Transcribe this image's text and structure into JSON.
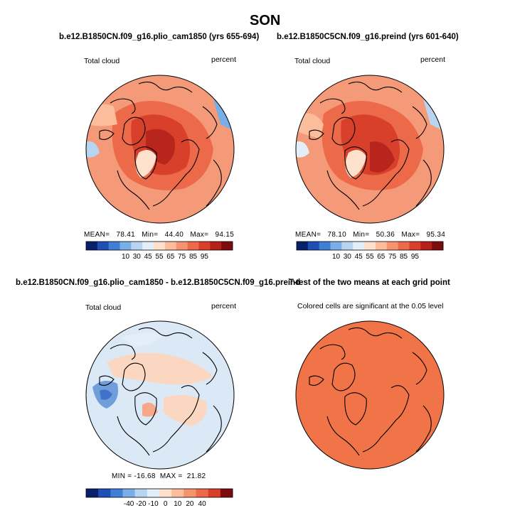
{
  "page_title": "SON",
  "panels": [
    {
      "title": "b.e12.B1850CN.f09_g16.plio_cam1850 (yrs 655-694)",
      "left_label": "Total cloud",
      "right_label": "percent",
      "stats": "MEAN=   78.41   Min=   44.40   Max=   94.15",
      "colorbar": {
        "ticks": [
          "10",
          "30",
          "45",
          "55",
          "65",
          "75",
          "85",
          "95"
        ],
        "colors": [
          "#08206b",
          "#1f4fb5",
          "#3f7fd6",
          "#7aaee6",
          "#b8d4f0",
          "#e4eef8",
          "#fde1cc",
          "#fbbd9c",
          "#f6936f",
          "#ec6a4a",
          "#d9402b",
          "#b5201a",
          "#7d0c0c"
        ]
      }
    },
    {
      "title": "b.e12.B1850C5CN.f09_g16.preind (yrs 601-640)",
      "left_label": "Total cloud",
      "right_label": "percent",
      "stats": "MEAN=   78.10   Min=   50.36   Max=   95.34",
      "colorbar": {
        "ticks": [
          "10",
          "30",
          "45",
          "55",
          "65",
          "75",
          "85",
          "95"
        ],
        "colors": [
          "#08206b",
          "#1f4fb5",
          "#3f7fd6",
          "#7aaee6",
          "#b8d4f0",
          "#e4eef8",
          "#fde1cc",
          "#fbbd9c",
          "#f6936f",
          "#ec6a4a",
          "#d9402b",
          "#b5201a",
          "#7d0c0c"
        ]
      }
    },
    {
      "title": "b.e12.B1850CN.f09_g16.plio_cam1850 - b.e12.B1850C5CN.f09_g16.preind",
      "left_label": "Total cloud",
      "right_label": "percent",
      "stats": "MIN = -16.68  MAX =  21.82",
      "colorbar": {
        "ticks": [
          "-40",
          "-20",
          "-10",
          "0",
          "10",
          "20",
          "40"
        ],
        "colors": [
          "#08206b",
          "#1f4fb5",
          "#3f7fd6",
          "#7aaee6",
          "#b8d4f0",
          "#e4eef8",
          "#fde1cc",
          "#fbbd9c",
          "#f6936f",
          "#ec6a4a",
          "#d9402b",
          "#7d0c0c"
        ]
      }
    },
    {
      "title": "T-test of the two means at each grid point",
      "subtitle": "Colored cells are significant at the 0.05 level",
      "fill_color": "#f07448"
    }
  ],
  "map_colors": {
    "panel1_base": "#f49a78",
    "panel1_mid": "#ec6a4a",
    "panel1_dark": "#d9402b",
    "panel1_deep": "#b8251c",
    "diff_base": "#dbe9f7",
    "diff_warm": "#fbd6c0",
    "diff_warm2": "#f6a989",
    "diff_cool": "#6f9edb",
    "diff_cool2": "#3f72c8"
  }
}
